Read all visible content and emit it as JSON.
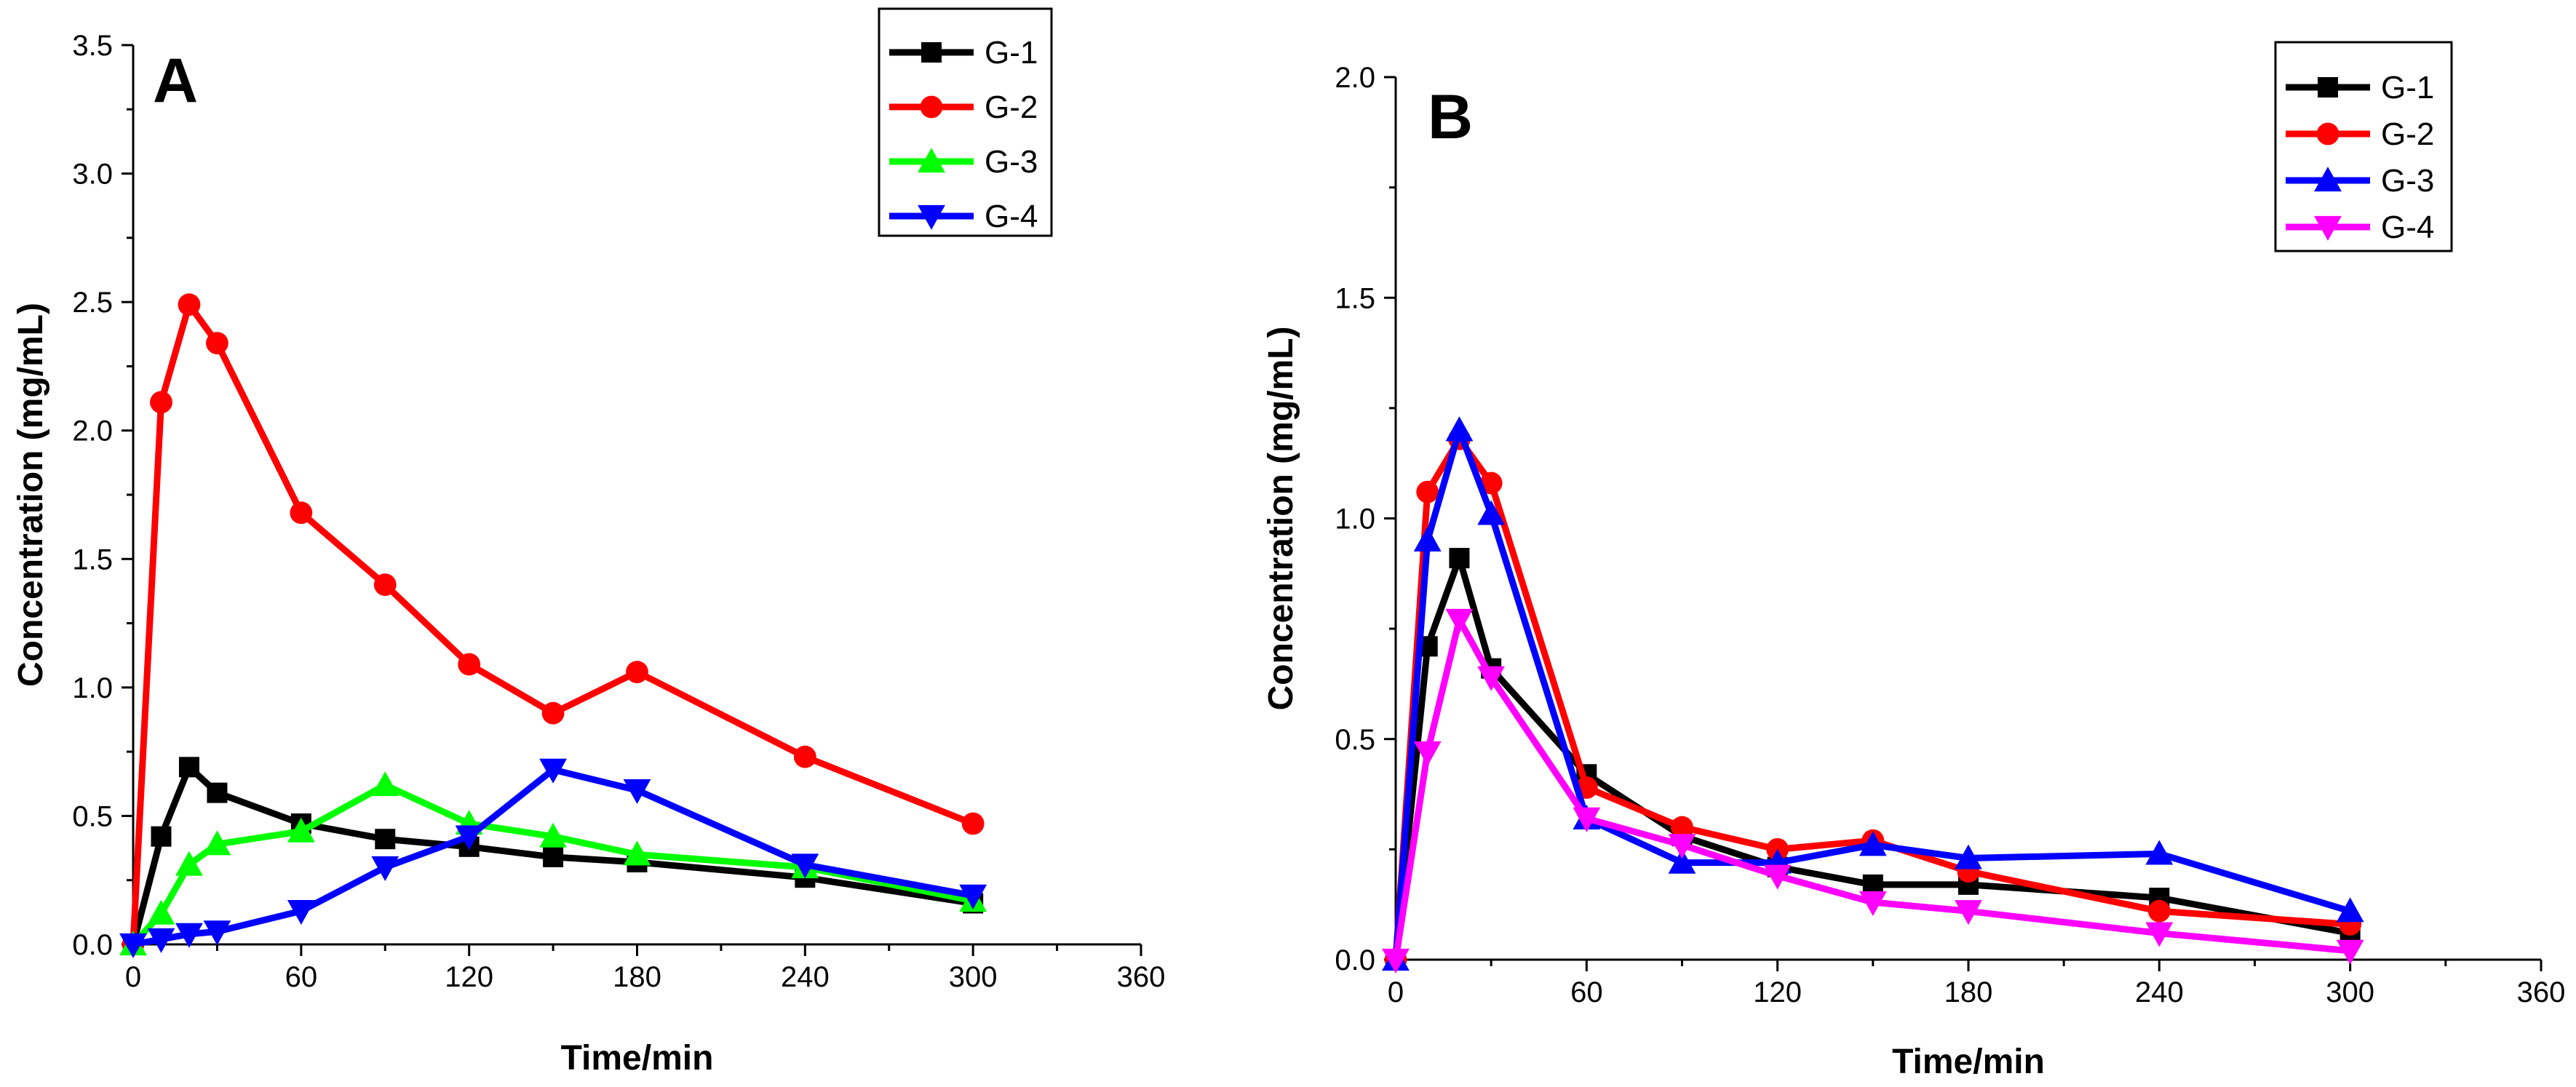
{
  "chart_data": [
    {
      "type": "line",
      "panel_label": "A",
      "xlabel": "Time/min",
      "ylabel": "Concentration (mg/mL)",
      "xlim": [
        0,
        360
      ],
      "ylim": [
        0,
        3.5
      ],
      "xticks": [
        0,
        60,
        120,
        180,
        240,
        300,
        360
      ],
      "yticks": [
        0.0,
        0.5,
        1.0,
        1.5,
        2.0,
        2.5,
        3.0,
        3.5
      ],
      "xtick_labels": [
        "0",
        "60",
        "120",
        "180",
        "240",
        "300",
        "360"
      ],
      "ytick_labels": [
        "0.0",
        "0.5",
        "1.0",
        "1.5",
        "2.0",
        "2.5",
        "3.0",
        "3.5"
      ],
      "legend_position": "top-right",
      "series": [
        {
          "name": "G-1",
          "color": "#000000",
          "marker": "square",
          "x": [
            0,
            10,
            20,
            30,
            60,
            90,
            120,
            150,
            180,
            240,
            300
          ],
          "y": [
            0.0,
            0.42,
            0.69,
            0.59,
            0.47,
            0.41,
            0.38,
            0.34,
            0.32,
            0.26,
            0.16
          ]
        },
        {
          "name": "G-2",
          "color": "#ff0000",
          "marker": "circle",
          "x": [
            0,
            10,
            20,
            30,
            60,
            90,
            120,
            150,
            180,
            240,
            300
          ],
          "y": [
            0.0,
            2.11,
            2.49,
            2.34,
            1.68,
            1.4,
            1.09,
            0.9,
            1.06,
            0.73,
            0.47
          ]
        },
        {
          "name": "G-3",
          "color": "#00ff00",
          "marker": "triangle-up",
          "x": [
            0,
            10,
            20,
            30,
            60,
            90,
            120,
            150,
            180,
            240,
            300
          ],
          "y": [
            0.0,
            0.12,
            0.31,
            0.39,
            0.44,
            0.62,
            0.47,
            0.42,
            0.35,
            0.3,
            0.17
          ]
        },
        {
          "name": "G-4",
          "color": "#0000ff",
          "marker": "triangle-down",
          "x": [
            0,
            10,
            20,
            30,
            60,
            90,
            120,
            150,
            180,
            240,
            300
          ],
          "y": [
            0.0,
            0.02,
            0.04,
            0.05,
            0.13,
            0.3,
            0.42,
            0.68,
            0.6,
            0.31,
            0.19
          ]
        }
      ]
    },
    {
      "type": "line",
      "panel_label": "B",
      "xlabel": "Time/min",
      "ylabel": "Concentration (mg/mL)",
      "xlim": [
        0,
        360
      ],
      "ylim": [
        0,
        2.0
      ],
      "xticks": [
        0,
        60,
        120,
        180,
        240,
        300,
        360
      ],
      "yticks": [
        0.0,
        0.5,
        1.0,
        1.5,
        2.0
      ],
      "xtick_labels": [
        "0",
        "60",
        "120",
        "180",
        "240",
        "300",
        "360"
      ],
      "ytick_labels": [
        "0.0",
        "0.5",
        "1.0",
        "1.5",
        "2.0"
      ],
      "legend_position": "top-right",
      "series": [
        {
          "name": "G-1",
          "color": "#000000",
          "marker": "square",
          "x": [
            0,
            10,
            20,
            30,
            60,
            90,
            120,
            150,
            180,
            240,
            300
          ],
          "y": [
            0.0,
            0.71,
            0.91,
            0.66,
            0.42,
            0.28,
            0.21,
            0.17,
            0.17,
            0.14,
            0.06
          ]
        },
        {
          "name": "G-2",
          "color": "#ff0000",
          "marker": "circle",
          "x": [
            0,
            10,
            20,
            30,
            60,
            90,
            120,
            150,
            180,
            240,
            300
          ],
          "y": [
            0.0,
            1.06,
            1.18,
            1.08,
            0.39,
            0.3,
            0.25,
            0.27,
            0.2,
            0.11,
            0.08
          ]
        },
        {
          "name": "G-3",
          "color": "#0000ff",
          "marker": "triangle-up",
          "x": [
            0,
            10,
            20,
            30,
            60,
            90,
            120,
            150,
            180,
            240,
            300
          ],
          "y": [
            0.0,
            0.95,
            1.2,
            1.01,
            0.32,
            0.22,
            0.22,
            0.26,
            0.23,
            0.24,
            0.11
          ]
        },
        {
          "name": "G-4",
          "color": "#ff00ff",
          "marker": "triangle-down",
          "x": [
            0,
            10,
            20,
            30,
            60,
            90,
            120,
            150,
            180,
            240,
            300
          ],
          "y": [
            0.0,
            0.47,
            0.77,
            0.64,
            0.32,
            0.26,
            0.19,
            0.13,
            0.11,
            0.06,
            0.02
          ]
        }
      ]
    }
  ]
}
